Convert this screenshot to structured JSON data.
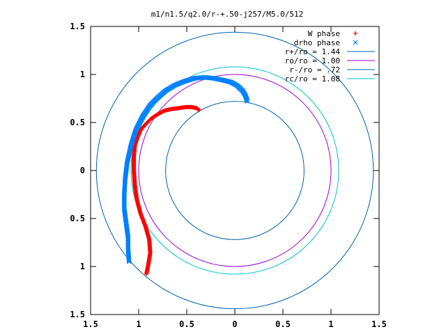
{
  "chart_data": {
    "type": "scatter",
    "title": "m1/n1.5/q2.0/r-+.50-j257/M5.0/512",
    "xlabel": "",
    "ylabel": "",
    "xlim": [
      -1.5,
      1.5
    ],
    "ylim": [
      -1.5,
      1.5
    ],
    "grid": false,
    "legend_position": "top-right",
    "x_ticks": [
      -1.5,
      -1,
      -0.5,
      0,
      0.5,
      1,
      1.5
    ],
    "x_tick_labels": [
      "1.5",
      "1",
      "0.5",
      "0",
      "0.5",
      "1",
      "1.5"
    ],
    "y_ticks": [
      1.5,
      1,
      0.5,
      0,
      -0.5,
      -1,
      -1.5
    ],
    "y_tick_labels": [
      "1.5",
      "1",
      "0.5",
      "0",
      "0.5",
      "1",
      "1.5"
    ],
    "series": [
      {
        "name": "W phase",
        "marker": "+",
        "color": "#ff0000",
        "x": [
          -0.92,
          -0.9,
          -0.88,
          -0.89,
          -0.93,
          -0.98,
          -1.02,
          -1.04,
          -1.05,
          -1.05,
          -1.04,
          -1.01,
          -0.98,
          -0.93,
          -0.87,
          -0.81,
          -0.74,
          -0.66,
          -0.58,
          -0.51,
          -0.45,
          -0.4,
          -0.37
        ],
        "y": [
          -1.08,
          -0.98,
          -0.86,
          -0.72,
          -0.58,
          -0.45,
          -0.3,
          -0.15,
          0.0,
          0.15,
          0.26,
          0.35,
          0.42,
          0.48,
          0.54,
          0.58,
          0.62,
          0.64,
          0.65,
          0.66,
          0.66,
          0.65,
          0.63
        ],
        "count": 400
      },
      {
        "name": "drho phase",
        "marker": "x",
        "color": "#0080ff",
        "x": [
          -1.1,
          -1.11,
          -1.11,
          -1.13,
          -1.15,
          -1.15,
          -1.14,
          -1.12,
          -1.08,
          -1.03,
          -0.96,
          -0.88,
          -0.8,
          -0.72,
          -0.62,
          -0.52,
          -0.42,
          -0.32,
          -0.22,
          -0.12,
          -0.04,
          0.03,
          0.08,
          0.11,
          0.13
        ],
        "y": [
          -0.95,
          -0.82,
          -0.7,
          -0.55,
          -0.4,
          -0.25,
          -0.08,
          0.08,
          0.26,
          0.42,
          0.56,
          0.68,
          0.76,
          0.83,
          0.89,
          0.93,
          0.96,
          0.97,
          0.96,
          0.94,
          0.92,
          0.88,
          0.83,
          0.78,
          0.72
        ],
        "count": 400
      }
    ],
    "circles": [
      {
        "name": "r+/ro = 1.44",
        "radius": 1.44,
        "color": "#0060ad"
      },
      {
        "name": "ro/ro = 1.00",
        "radius": 1.0,
        "color": "#9400d3"
      },
      {
        "name": "r-/ro = .72",
        "radius": 0.72,
        "color": "#0060ad"
      },
      {
        "name": "rc/ro = 1.08",
        "radius": 1.08,
        "color": "#00c0d0"
      }
    ]
  }
}
